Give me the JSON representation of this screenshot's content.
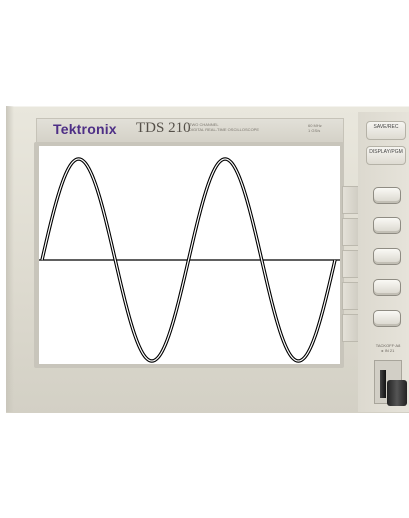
{
  "instrument": {
    "brand": "Tektronix",
    "model": "TDS 210",
    "model_sub": [
      "TWO CHANNEL",
      "DIGITAL REAL-TIME OSCILLOSCOPE"
    ],
    "spec": [
      "60 MHz",
      "1 GS/s"
    ]
  },
  "buttons": {
    "save_recall": "SAVE/REC",
    "display": "DISPLAY/PGM"
  },
  "probe": {
    "label": [
      "TACKOFF·A8",
      "▸ IN 21"
    ]
  },
  "waveform": {
    "type": "sine",
    "cycles": 2,
    "trace_color": "#000000",
    "screen_color": "#ffffff",
    "brand_color": "#4e2f86"
  }
}
